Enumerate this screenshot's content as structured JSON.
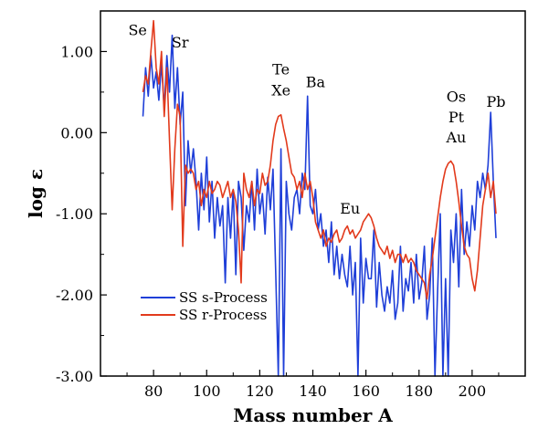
{
  "chart_data": {
    "type": "line",
    "xlabel": "Mass number A",
    "ylabel": "log ε",
    "xlim": [
      60,
      220
    ],
    "ylim": [
      -3.0,
      1.5
    ],
    "x_ticks": [
      80,
      100,
      120,
      140,
      160,
      180,
      200
    ],
    "y_ticks": [
      -3.0,
      -2.0,
      -1.0,
      0.0,
      1.0
    ],
    "y_tick_labels": [
      "-3.00",
      "-2.00",
      "-1.00",
      "0.00",
      "1.00"
    ],
    "legend_placement": "bottom-left",
    "annotations": [
      {
        "text": "Se",
        "x": 74,
        "y": 1.2
      },
      {
        "text": "Sr",
        "x": 90,
        "y": 1.05
      },
      {
        "text": "Te",
        "x": 128,
        "y": 0.72
      },
      {
        "text": "Xe",
        "x": 128,
        "y": 0.46
      },
      {
        "text": "Ba",
        "x": 141,
        "y": 0.56
      },
      {
        "text": "Eu",
        "x": 154,
        "y": -1.0
      },
      {
        "text": "Os",
        "x": 194,
        "y": 0.38
      },
      {
        "text": "Pt",
        "x": 194,
        "y": 0.13
      },
      {
        "text": "Au",
        "x": 194,
        "y": -0.12
      },
      {
        "text": "Pb",
        "x": 209,
        "y": 0.32
      }
    ],
    "series": [
      {
        "name": "SS s-Process",
        "color": "#1f3fd8",
        "x": [
          76,
          77,
          78,
          79,
          80,
          81,
          82,
          83,
          84,
          85,
          86,
          87,
          88,
          89,
          90,
          91,
          92,
          93,
          94,
          95,
          96,
          97,
          98,
          99,
          100,
          101,
          102,
          103,
          104,
          105,
          106,
          107,
          108,
          109,
          110,
          111,
          112,
          113,
          114,
          115,
          116,
          117,
          118,
          119,
          120,
          121,
          122,
          123,
          124,
          125,
          126,
          127,
          128,
          129,
          130,
          131,
          132,
          133,
          134,
          135,
          136,
          137,
          138,
          139,
          140,
          141,
          142,
          143,
          144,
          145,
          146,
          147,
          148,
          149,
          150,
          151,
          152,
          153,
          154,
          155,
          156,
          157,
          158,
          159,
          160,
          161,
          162,
          163,
          164,
          165,
          166,
          167,
          168,
          169,
          170,
          171,
          172,
          173,
          174,
          175,
          176,
          177,
          178,
          179,
          180,
          181,
          182,
          183,
          184,
          185,
          186,
          187,
          188,
          189,
          190,
          191,
          192,
          193,
          194,
          195,
          196,
          197,
          198,
          199,
          200,
          201,
          202,
          203,
          204,
          205,
          206,
          207,
          208,
          209
        ],
        "values": [
          0.2,
          0.8,
          0.45,
          0.95,
          0.55,
          0.75,
          0.4,
          0.85,
          0.3,
          0.95,
          0.5,
          1.2,
          0.3,
          0.8,
          0.1,
          0.5,
          -0.9,
          -0.1,
          -0.5,
          -0.2,
          -0.6,
          -1.2,
          -0.5,
          -0.95,
          -0.3,
          -1.1,
          -0.6,
          -1.3,
          -0.8,
          -1.15,
          -0.9,
          -1.85,
          -0.8,
          -1.3,
          -0.7,
          -1.75,
          -0.6,
          -0.8,
          -1.45,
          -0.9,
          -1.1,
          -0.6,
          -1.2,
          -0.45,
          -1.0,
          -0.75,
          -1.25,
          -0.55,
          -0.95,
          -0.45,
          -1.7,
          -3.0,
          -0.2,
          -3.0,
          -0.6,
          -1.0,
          -1.2,
          -0.8,
          -0.7,
          -1.0,
          -0.5,
          -0.7,
          0.45,
          -0.9,
          -1.0,
          -0.7,
          -1.2,
          -1.0,
          -1.4,
          -1.2,
          -1.6,
          -1.1,
          -1.75,
          -1.4,
          -1.8,
          -1.5,
          -1.75,
          -1.9,
          -1.4,
          -2.0,
          -1.6,
          -3.0,
          -1.3,
          -2.1,
          -1.55,
          -1.8,
          -1.8,
          -1.2,
          -2.15,
          -1.6,
          -2.0,
          -2.2,
          -1.9,
          -2.1,
          -1.7,
          -2.3,
          -2.1,
          -1.4,
          -2.2,
          -1.8,
          -1.95,
          -1.6,
          -2.1,
          -1.5,
          -2.05,
          -1.85,
          -1.4,
          -2.3,
          -2.0,
          -1.3,
          -3.0,
          -1.95,
          -1.0,
          -3.0,
          -1.8,
          -3.0,
          -1.2,
          -1.6,
          -1.0,
          -1.9,
          -0.7,
          -1.5,
          -1.1,
          -1.4,
          -0.9,
          -1.2,
          -0.6,
          -0.8,
          -0.5,
          -0.7,
          -0.4,
          0.25,
          -0.6,
          -1.3
        ]
      },
      {
        "name": "SS r-Process",
        "color": "#e23a1c",
        "x": [
          76,
          77,
          78,
          79,
          80,
          81,
          82,
          83,
          84,
          85,
          86,
          87,
          88,
          89,
          90,
          91,
          92,
          93,
          94,
          95,
          96,
          97,
          98,
          99,
          100,
          101,
          102,
          103,
          104,
          105,
          106,
          107,
          108,
          109,
          110,
          111,
          112,
          113,
          114,
          115,
          116,
          117,
          118,
          119,
          120,
          121,
          122,
          123,
          124,
          125,
          126,
          127,
          128,
          129,
          130,
          131,
          132,
          133,
          134,
          135,
          136,
          137,
          138,
          139,
          140,
          141,
          142,
          143,
          144,
          145,
          146,
          147,
          148,
          149,
          150,
          151,
          152,
          153,
          154,
          155,
          156,
          157,
          158,
          159,
          160,
          161,
          162,
          163,
          164,
          165,
          166,
          167,
          168,
          169,
          170,
          171,
          172,
          173,
          174,
          175,
          176,
          177,
          178,
          179,
          180,
          181,
          182,
          183,
          184,
          185,
          186,
          187,
          188,
          189,
          190,
          191,
          192,
          193,
          194,
          195,
          196,
          197,
          198,
          199,
          200,
          201,
          202,
          203,
          204,
          205,
          206,
          207,
          208,
          209
        ],
        "values": [
          0.5,
          0.7,
          0.6,
          1.0,
          1.38,
          0.8,
          0.6,
          1.0,
          0.2,
          0.8,
          -0.1,
          -0.95,
          -0.2,
          0.35,
          0.2,
          -1.4,
          -0.4,
          -0.5,
          -0.45,
          -0.5,
          -0.7,
          -0.6,
          -0.9,
          -0.7,
          -0.8,
          -0.6,
          -0.75,
          -0.7,
          -0.6,
          -0.65,
          -0.8,
          -0.7,
          -0.6,
          -0.8,
          -0.7,
          -0.85,
          -1.2,
          -1.85,
          -0.5,
          -0.7,
          -0.8,
          -0.6,
          -0.9,
          -0.7,
          -0.75,
          -0.5,
          -0.65,
          -0.6,
          -0.4,
          -0.1,
          0.1,
          0.2,
          0.22,
          0.05,
          -0.1,
          -0.3,
          -0.5,
          -0.55,
          -0.7,
          -0.6,
          -0.8,
          -0.5,
          -0.7,
          -0.6,
          -0.8,
          -1.1,
          -1.2,
          -1.3,
          -1.2,
          -1.4,
          -1.3,
          -1.35,
          -1.25,
          -1.2,
          -1.35,
          -1.3,
          -1.2,
          -1.15,
          -1.25,
          -1.2,
          -1.3,
          -1.25,
          -1.2,
          -1.1,
          -1.05,
          -1.0,
          -1.05,
          -1.15,
          -1.3,
          -1.4,
          -1.45,
          -1.5,
          -1.4,
          -1.55,
          -1.45,
          -1.6,
          -1.5,
          -1.5,
          -1.6,
          -1.5,
          -1.6,
          -1.55,
          -1.6,
          -1.7,
          -1.75,
          -1.8,
          -1.85,
          -2.05,
          -1.75,
          -1.55,
          -1.3,
          -1.05,
          -0.8,
          -0.6,
          -0.45,
          -0.38,
          -0.35,
          -0.4,
          -0.6,
          -0.85,
          -1.15,
          -1.4,
          -1.5,
          -1.55,
          -1.8,
          -1.95,
          -1.7,
          -1.3,
          -0.9,
          -0.7,
          -0.5,
          -0.8,
          -0.6,
          -1.0
        ]
      }
    ]
  }
}
